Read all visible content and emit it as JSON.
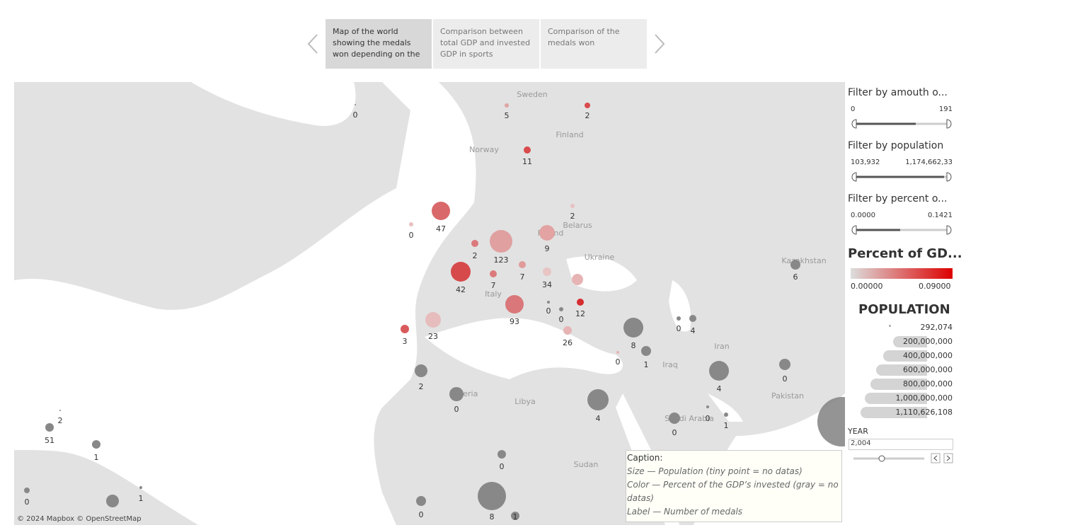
{
  "story": {
    "points": [
      "Map of the world showing the medals won depending on the",
      "Comparison between total GDP and invested GDP in sports",
      "Comparison of the medals won"
    ]
  },
  "map": {
    "attribution": "© 2024 Mapbox © OpenStreetMap",
    "country_labels": [
      "Sweden",
      "Finland",
      "Norway",
      "Belarus",
      "Poland",
      "Ukraine",
      "Kazakhstan",
      "Italy",
      "Iraq",
      "Iran",
      "Pakistan",
      "Algeria",
      "Libya",
      "Saudi Arabia",
      "Sudan"
    ],
    "markers": [
      {
        "medals": 0,
        "color": "#888888"
      },
      {
        "medals": 5,
        "color": "#e0a3a3"
      },
      {
        "medals": 2,
        "color": "#d94a4c"
      },
      {
        "medals": 11,
        "color": "#d94a4c"
      },
      {
        "medals": 47,
        "color": "#d9686a"
      },
      {
        "medals": 0,
        "color": "#e8c0c0"
      },
      {
        "medals": 2,
        "color": "#e8c0c0"
      },
      {
        "medals": 123,
        "color": "#e0a0a0"
      },
      {
        "medals": 9,
        "color": "#e3a3a3"
      },
      {
        "medals": 2,
        "color": "#db7a7c"
      },
      {
        "medals": 42,
        "color": "#d64a4c"
      },
      {
        "medals": 7,
        "color": "#db7a7c"
      },
      {
        "medals": 7,
        "color": "#e09a9a"
      },
      {
        "medals": 34,
        "color": "#e8c4c4"
      },
      {
        "medals": 93,
        "color": "#d9777a"
      },
      {
        "medals": 12,
        "color": "#d52d30"
      },
      {
        "medals": 0,
        "color": "#888888"
      },
      {
        "medals": 0,
        "color": "#888888"
      },
      {
        "medals": 23,
        "color": "#e6bcbc"
      },
      {
        "medals": 3,
        "color": "#d95a5c"
      },
      {
        "medals": 26,
        "color": "#e6b4b4"
      },
      {
        "medals": 8,
        "color": "#888888"
      },
      {
        "medals": 0,
        "color": "#e6b4b4"
      },
      {
        "medals": 1,
        "color": "#888888"
      },
      {
        "medals": 0,
        "color": "#888888"
      },
      {
        "medals": 4,
        "color": "#888888"
      },
      {
        "medals": 6,
        "color": "#888888"
      },
      {
        "medals": 4,
        "color": "#888888"
      },
      {
        "medals": 0,
        "color": "#888888"
      },
      {
        "medals": 2,
        "color": "#888888"
      },
      {
        "medals": 0,
        "color": "#888888"
      },
      {
        "medals": 4,
        "color": "#888888"
      },
      {
        "medals": 0,
        "color": "#888888"
      },
      {
        "medals": 0,
        "color": "#888888"
      },
      {
        "medals": 1,
        "color": "#888888"
      },
      {
        "medals": 0,
        "color": "#888888"
      },
      {
        "medals": 8,
        "color": "#888888"
      },
      {
        "medals": 1,
        "color": "#888888"
      },
      {
        "medals": 0,
        "color": "#888888"
      },
      {
        "medals": 51,
        "color": "#888888"
      },
      {
        "medals": 2,
        "color": "#888888"
      },
      {
        "medals": 1,
        "color": "#888888"
      },
      {
        "medals": 0,
        "color": "#888888"
      },
      {
        "medals": 1,
        "color": "#888888"
      }
    ]
  },
  "caption": {
    "title": "Caption:",
    "lines": [
      "Size — Population (tiny point = no datas)",
      "Color  — Percent of the GDP’s invested (gray = no datas)",
      "Label — Number of medals"
    ]
  },
  "filters": [
    {
      "title": "Filter by amouth o...",
      "min": "0",
      "max": "191"
    },
    {
      "title": "Filter by population",
      "min": "103,932",
      "max": "1,174,662,33"
    },
    {
      "title": "Filter by percent o...",
      "min": "0.0000",
      "max": "0.1421"
    }
  ],
  "color_legend": {
    "title": "Percent of GD...",
    "min": "0.00000",
    "max": "0.09000"
  },
  "population_legend": {
    "title": "POPULATION",
    "entries": [
      "292,074",
      "200,000,000",
      "400,000,000",
      "600,000,000",
      "800,000,000",
      "1,000,000,000",
      "1,110,626,108"
    ]
  },
  "year": {
    "title": "YEAR",
    "value": "2,004"
  }
}
